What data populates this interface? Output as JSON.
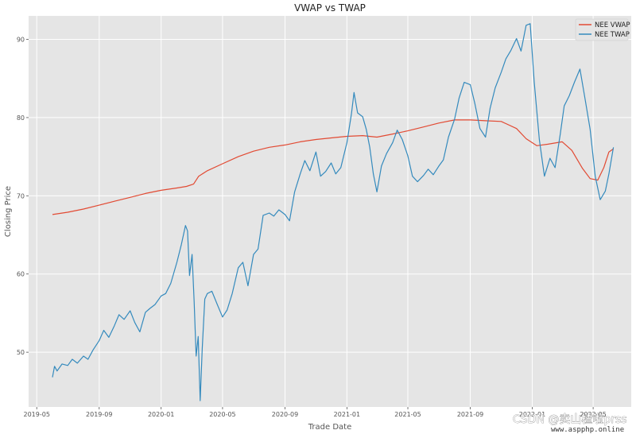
{
  "chart_data": {
    "type": "line",
    "title": "VWAP vs TWAP",
    "xlabel": "Trade Date",
    "ylabel": "Closing Price",
    "x_ticks": [
      "2019-05",
      "2019-09",
      "2020-01",
      "2020-05",
      "2020-09",
      "2021-01",
      "2021-05",
      "2021-09",
      "2022-01",
      "2022-05"
    ],
    "y_ticks": [
      50,
      60,
      70,
      80,
      90
    ],
    "xlim": [
      "2019-04-15",
      "2022-07-15"
    ],
    "ylim": [
      43,
      93
    ],
    "grid": true,
    "legend": "top-right",
    "series": [
      {
        "name": "NEE VWAP",
        "color": "#e24a33",
        "points": [
          [
            "2019-06-01",
            67.6
          ],
          [
            "2019-07-01",
            67.9
          ],
          [
            "2019-08-01",
            68.3
          ],
          [
            "2019-09-01",
            68.8
          ],
          [
            "2019-10-01",
            69.3
          ],
          [
            "2019-11-01",
            69.8
          ],
          [
            "2019-12-01",
            70.3
          ],
          [
            "2020-01-01",
            70.7
          ],
          [
            "2020-02-01",
            71.0
          ],
          [
            "2020-02-20",
            71.2
          ],
          [
            "2020-03-05",
            71.5
          ],
          [
            "2020-03-15",
            72.5
          ],
          [
            "2020-04-01",
            73.2
          ],
          [
            "2020-05-01",
            74.1
          ],
          [
            "2020-06-01",
            75.0
          ],
          [
            "2020-07-01",
            75.7
          ],
          [
            "2020-08-01",
            76.2
          ],
          [
            "2020-09-01",
            76.5
          ],
          [
            "2020-10-01",
            76.9
          ],
          [
            "2020-11-01",
            77.2
          ],
          [
            "2020-12-01",
            77.4
          ],
          [
            "2021-01-01",
            77.6
          ],
          [
            "2021-02-01",
            77.7
          ],
          [
            "2021-03-01",
            77.5
          ],
          [
            "2021-04-01",
            77.9
          ],
          [
            "2021-05-01",
            78.3
          ],
          [
            "2021-06-01",
            78.8
          ],
          [
            "2021-07-01",
            79.3
          ],
          [
            "2021-08-01",
            79.7
          ],
          [
            "2021-09-01",
            79.7
          ],
          [
            "2021-10-01",
            79.6
          ],
          [
            "2021-11-01",
            79.5
          ],
          [
            "2021-12-01",
            78.6
          ],
          [
            "2021-12-20",
            77.3
          ],
          [
            "2022-01-10",
            76.4
          ],
          [
            "2022-02-01",
            76.6
          ],
          [
            "2022-03-01",
            76.9
          ],
          [
            "2022-03-20",
            75.8
          ],
          [
            "2022-04-10",
            73.5
          ],
          [
            "2022-04-25",
            72.2
          ],
          [
            "2022-05-10",
            72.0
          ],
          [
            "2022-05-22",
            73.6
          ],
          [
            "2022-06-01",
            75.6
          ],
          [
            "2022-06-10",
            76.0
          ]
        ]
      },
      {
        "name": "NEE TWAP",
        "color": "#348abd",
        "points": [
          [
            "2019-06-01",
            46.8
          ],
          [
            "2019-06-05",
            48.2
          ],
          [
            "2019-06-10",
            47.6
          ],
          [
            "2019-06-20",
            48.5
          ],
          [
            "2019-07-01",
            48.3
          ],
          [
            "2019-07-10",
            49.1
          ],
          [
            "2019-07-20",
            48.6
          ],
          [
            "2019-08-01",
            49.5
          ],
          [
            "2019-08-10",
            49.1
          ],
          [
            "2019-08-20",
            50.3
          ],
          [
            "2019-09-01",
            51.5
          ],
          [
            "2019-09-10",
            52.8
          ],
          [
            "2019-09-20",
            51.9
          ],
          [
            "2019-10-01",
            53.4
          ],
          [
            "2019-10-10",
            54.8
          ],
          [
            "2019-10-20",
            54.2
          ],
          [
            "2019-11-01",
            55.3
          ],
          [
            "2019-11-10",
            53.8
          ],
          [
            "2019-11-20",
            52.6
          ],
          [
            "2019-12-01",
            55.1
          ],
          [
            "2019-12-10",
            55.6
          ],
          [
            "2019-12-20",
            56.1
          ],
          [
            "2020-01-01",
            57.2
          ],
          [
            "2020-01-10",
            57.5
          ],
          [
            "2020-01-20",
            58.8
          ],
          [
            "2020-02-01",
            61.5
          ],
          [
            "2020-02-10",
            63.8
          ],
          [
            "2020-02-18",
            66.2
          ],
          [
            "2020-02-22",
            65.5
          ],
          [
            "2020-02-26",
            59.8
          ],
          [
            "2020-03-02",
            62.5
          ],
          [
            "2020-03-06",
            56.5
          ],
          [
            "2020-03-10",
            49.5
          ],
          [
            "2020-03-14",
            52.0
          ],
          [
            "2020-03-18",
            43.8
          ],
          [
            "2020-03-22",
            50.5
          ],
          [
            "2020-03-27",
            56.8
          ],
          [
            "2020-04-01",
            57.5
          ],
          [
            "2020-04-10",
            57.8
          ],
          [
            "2020-04-20",
            56.2
          ],
          [
            "2020-05-01",
            54.5
          ],
          [
            "2020-05-10",
            55.4
          ],
          [
            "2020-05-20",
            57.5
          ],
          [
            "2020-06-01",
            60.8
          ],
          [
            "2020-06-10",
            61.5
          ],
          [
            "2020-06-20",
            58.5
          ],
          [
            "2020-07-01",
            62.5
          ],
          [
            "2020-07-10",
            63.2
          ],
          [
            "2020-07-20",
            67.5
          ],
          [
            "2020-08-01",
            67.8
          ],
          [
            "2020-08-10",
            67.4
          ],
          [
            "2020-08-20",
            68.2
          ],
          [
            "2020-09-01",
            67.6
          ],
          [
            "2020-09-10",
            66.8
          ],
          [
            "2020-09-20",
            70.5
          ],
          [
            "2020-10-01",
            72.8
          ],
          [
            "2020-10-10",
            74.5
          ],
          [
            "2020-10-20",
            73.2
          ],
          [
            "2020-11-01",
            75.6
          ],
          [
            "2020-11-10",
            72.5
          ],
          [
            "2020-11-20",
            73.1
          ],
          [
            "2020-12-01",
            74.2
          ],
          [
            "2020-12-10",
            72.8
          ],
          [
            "2020-12-20",
            73.6
          ],
          [
            "2021-01-01",
            76.8
          ],
          [
            "2021-01-10",
            80.5
          ],
          [
            "2021-01-15",
            83.2
          ],
          [
            "2021-01-22",
            80.6
          ],
          [
            "2021-02-01",
            80.1
          ],
          [
            "2021-02-08",
            78.5
          ],
          [
            "2021-02-15",
            76.2
          ],
          [
            "2021-02-22",
            72.8
          ],
          [
            "2021-03-01",
            70.5
          ],
          [
            "2021-03-10",
            73.8
          ],
          [
            "2021-03-20",
            75.4
          ],
          [
            "2021-04-01",
            76.8
          ],
          [
            "2021-04-10",
            78.4
          ],
          [
            "2021-04-20",
            77.2
          ],
          [
            "2021-05-01",
            75.1
          ],
          [
            "2021-05-10",
            72.5
          ],
          [
            "2021-05-20",
            71.8
          ],
          [
            "2021-06-01",
            72.6
          ],
          [
            "2021-06-10",
            73.4
          ],
          [
            "2021-06-20",
            72.7
          ],
          [
            "2021-07-01",
            73.8
          ],
          [
            "2021-07-10",
            74.6
          ],
          [
            "2021-07-20",
            77.5
          ],
          [
            "2021-08-01",
            79.8
          ],
          [
            "2021-08-10",
            82.5
          ],
          [
            "2021-08-20",
            84.5
          ],
          [
            "2021-09-01",
            84.2
          ],
          [
            "2021-09-10",
            81.8
          ],
          [
            "2021-09-20",
            78.6
          ],
          [
            "2021-10-01",
            77.5
          ],
          [
            "2021-10-10",
            81.2
          ],
          [
            "2021-10-20",
            83.8
          ],
          [
            "2021-11-01",
            85.8
          ],
          [
            "2021-11-10",
            87.5
          ],
          [
            "2021-11-20",
            88.6
          ],
          [
            "2021-12-01",
            90.1
          ],
          [
            "2021-12-10",
            88.5
          ],
          [
            "2021-12-20",
            91.8
          ],
          [
            "2021-12-28",
            92.0
          ],
          [
            "2022-01-05",
            84.5
          ],
          [
            "2022-01-15",
            77.2
          ],
          [
            "2022-01-25",
            72.5
          ],
          [
            "2022-02-05",
            74.8
          ],
          [
            "2022-02-15",
            73.6
          ],
          [
            "2022-02-25",
            77.8
          ],
          [
            "2022-03-05",
            81.5
          ],
          [
            "2022-03-15",
            82.8
          ],
          [
            "2022-03-25",
            84.5
          ],
          [
            "2022-04-05",
            86.2
          ],
          [
            "2022-04-15",
            82.4
          ],
          [
            "2022-04-25",
            78.5
          ],
          [
            "2022-05-05",
            72.5
          ],
          [
            "2022-05-15",
            69.5
          ],
          [
            "2022-05-25",
            70.6
          ],
          [
            "2022-06-01",
            72.8
          ],
          [
            "2022-06-10",
            76.2
          ]
        ]
      }
    ]
  },
  "watermark": {
    "main": "CSDN @卖山楂啦prss",
    "sub": "www.aspphp.online"
  }
}
